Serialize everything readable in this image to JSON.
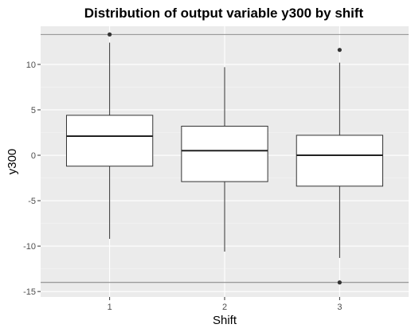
{
  "chart_data": {
    "type": "boxplot",
    "title": "Distribution of output variable y300 by shift",
    "xlabel": "Shift",
    "ylabel": "y300",
    "categories": [
      "1",
      "2",
      "3"
    ],
    "ylim": [
      -15.6,
      14.2
    ],
    "yticks": [
      -15,
      -10,
      -5,
      0,
      5,
      10
    ],
    "ytick_labels": [
      "-15",
      "-10",
      "-5",
      "0",
      "5",
      "10"
    ],
    "grid": true,
    "panel_background": "#ebebeb",
    "box_fill": "#ffffff",
    "reference_lines": [
      13.3,
      -14.0
    ],
    "reference_line_color": "#7f7f7f",
    "boxes": [
      {
        "category": "1",
        "whisker_low": -9.2,
        "q1": -1.2,
        "median": 2.1,
        "q3": 4.4,
        "whisker_high": 12.4,
        "outliers": [
          13.3
        ]
      },
      {
        "category": "2",
        "whisker_low": -10.6,
        "q1": -2.9,
        "median": 0.5,
        "q3": 3.2,
        "whisker_high": 9.7,
        "outliers": []
      },
      {
        "category": "3",
        "whisker_low": -11.3,
        "q1": -3.4,
        "median": 0.0,
        "q3": 2.2,
        "whisker_high": 10.2,
        "outliers": [
          11.6,
          -14.0
        ]
      }
    ]
  }
}
